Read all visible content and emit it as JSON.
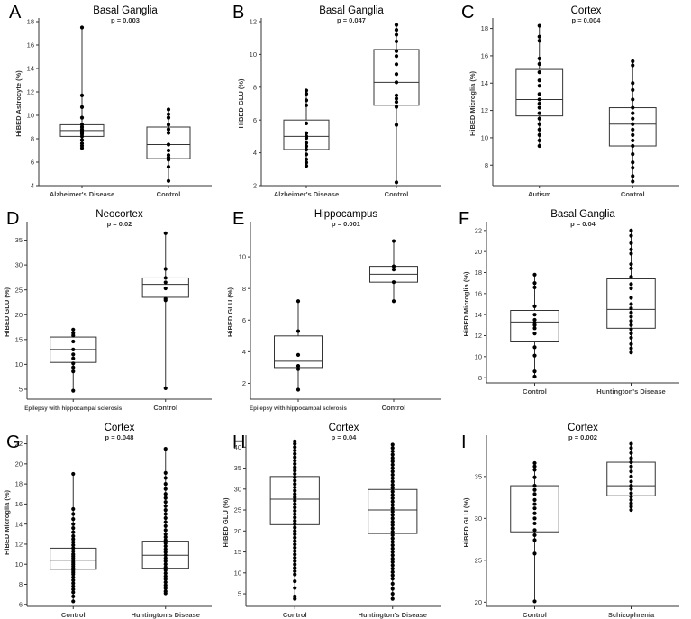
{
  "chart_data": [
    {
      "label": "A",
      "type": "boxplot",
      "title": "Basal Ganglia",
      "pvalue": "p = 0.003",
      "ylabel": "HiBED Astrocyte (%)",
      "ylim": [
        4,
        18
      ],
      "yticks": [
        4,
        6,
        8,
        10,
        12,
        14,
        16,
        18
      ],
      "categories": [
        "Alzheimer's Disease",
        "Control"
      ],
      "boxes": [
        {
          "q1": 8.2,
          "median": 8.7,
          "q3": 9.2,
          "min": 7.2,
          "max": 17.5,
          "points": [
            17.5,
            11.7,
            10.7,
            9.8,
            9.2,
            9.0,
            8.8,
            8.7,
            8.6,
            8.5,
            8.4,
            8.2,
            7.9,
            7.6,
            7.4,
            7.2
          ]
        },
        {
          "q1": 6.3,
          "median": 7.5,
          "q3": 9.0,
          "min": 4.4,
          "max": 10.5,
          "points": [
            10.5,
            10.1,
            9.8,
            9.2,
            8.8,
            8.5,
            7.5,
            7.0,
            6.6,
            6.4,
            6.2,
            5.6,
            4.4
          ]
        }
      ]
    },
    {
      "label": "B",
      "type": "boxplot",
      "title": "Basal Ganglia",
      "pvalue": "p = 0.047",
      "ylabel": "HiBED GLU (%)",
      "ylim": [
        2,
        12
      ],
      "yticks": [
        2,
        4,
        6,
        8,
        10,
        12
      ],
      "categories": [
        "Alzheimer's Disease",
        "Control"
      ],
      "boxes": [
        {
          "q1": 4.2,
          "median": 5.0,
          "q3": 6.0,
          "min": 3.2,
          "max": 7.8,
          "points": [
            7.8,
            7.6,
            7.2,
            6.9,
            5.8,
            5.2,
            5.0,
            4.9,
            4.6,
            4.4,
            4.2,
            3.9,
            3.6,
            3.4,
            3.2
          ]
        },
        {
          "q1": 6.9,
          "median": 8.3,
          "q3": 10.3,
          "min": 2.2,
          "max": 11.8,
          "points": [
            11.8,
            11.5,
            11.2,
            10.8,
            10.2,
            9.9,
            9.4,
            8.8,
            8.3,
            7.5,
            7.3,
            7.1,
            6.8,
            5.7,
            2.2
          ]
        }
      ]
    },
    {
      "label": "C",
      "type": "boxplot",
      "title": "Cortex",
      "pvalue": "p = 0.004",
      "ylabel": "HiBED Microglia (%)",
      "ylim": [
        6.5,
        18.5
      ],
      "yticks": [
        8,
        10,
        12,
        14,
        16,
        18
      ],
      "categories": [
        "Autism",
        "Control"
      ],
      "boxes": [
        {
          "q1": 11.6,
          "median": 12.8,
          "q3": 15.0,
          "min": 9.4,
          "max": 18.2,
          "points": [
            18.2,
            17.4,
            17.1,
            15.8,
            15.4,
            14.8,
            14.2,
            13.8,
            13.2,
            12.8,
            12.5,
            12.2,
            11.8,
            11.4,
            11.0,
            10.6,
            10.2,
            9.8,
            9.4
          ]
        },
        {
          "q1": 9.4,
          "median": 11.0,
          "q3": 12.2,
          "min": 6.8,
          "max": 15.6,
          "points": [
            15.6,
            15.3,
            14.0,
            13.5,
            12.8,
            12.2,
            11.8,
            11.4,
            11.0,
            10.6,
            10.2,
            9.8,
            9.4,
            8.8,
            8.2,
            7.8,
            7.2,
            6.8
          ]
        }
      ]
    },
    {
      "label": "D",
      "type": "boxplot",
      "title": "Neocortex",
      "pvalue": "p = 0.02",
      "ylabel": "HiBED GLU (%)",
      "ylim": [
        3,
        38
      ],
      "yticks": [
        5,
        10,
        15,
        20,
        25,
        30,
        35
      ],
      "categories": [
        "Epilepsy with hippocampal sclerosis",
        "Control"
      ],
      "boxes": [
        {
          "q1": 10.4,
          "median": 13.0,
          "q3": 15.5,
          "min": 4.7,
          "max": 17.0,
          "points": [
            17.0,
            16.3,
            15.8,
            14.6,
            13.0,
            12.0,
            11.2,
            10.2,
            9.4,
            8.6,
            4.7
          ]
        },
        {
          "q1": 23.5,
          "median": 26.1,
          "q3": 27.4,
          "min": 5.2,
          "max": 36.4,
          "points": [
            36.4,
            29.2,
            27.4,
            26.5,
            25.3,
            23.2,
            22.9,
            5.2
          ]
        }
      ]
    },
    {
      "label": "E",
      "type": "boxplot",
      "title": "Hippocampus",
      "pvalue": "p = 0.001",
      "ylabel": "HiBED GLU (%)",
      "ylim": [
        1,
        12
      ],
      "yticks": [
        2,
        4,
        6,
        8,
        10
      ],
      "categories": [
        "Epilepsy with hippocampal sclerosis",
        "Control"
      ],
      "boxes": [
        {
          "q1": 3.0,
          "median": 3.4,
          "q3": 5.0,
          "min": 1.6,
          "max": 7.2,
          "points": [
            7.2,
            5.3,
            3.8,
            3.1,
            2.9,
            1.6
          ]
        },
        {
          "q1": 8.4,
          "median": 8.9,
          "q3": 9.4,
          "min": 7.2,
          "max": 11.0,
          "points": [
            11.0,
            9.4,
            9.2,
            8.4,
            7.2
          ]
        }
      ]
    },
    {
      "label": "F",
      "type": "boxplot",
      "title": "Basal Ganglia",
      "pvalue": "p = 0.04",
      "ylabel": "HiBED Microglia (%)",
      "ylim": [
        7.5,
        22.5
      ],
      "yticks": [
        8,
        10,
        12,
        14,
        16,
        18,
        20,
        22
      ],
      "categories": [
        "Control",
        "Huntington's Disease"
      ],
      "boxes": [
        {
          "q1": 11.4,
          "median": 13.3,
          "q3": 14.4,
          "min": 8.1,
          "max": 17.8,
          "points": [
            17.8,
            17.0,
            16.6,
            14.8,
            14.0,
            13.5,
            13.2,
            13.0,
            12.7,
            12.2,
            10.9,
            10.1,
            8.6,
            8.1
          ]
        },
        {
          "q1": 12.7,
          "median": 14.5,
          "q3": 17.4,
          "min": 10.4,
          "max": 22.0,
          "points": [
            22.0,
            21.5,
            20.8,
            20.2,
            19.8,
            18.8,
            18.4,
            17.6,
            16.9,
            16.5,
            15.6,
            15.0,
            14.6,
            14.2,
            13.8,
            13.4,
            13.0,
            12.6,
            12.2,
            11.8,
            11.2,
            10.8,
            10.4
          ]
        }
      ]
    },
    {
      "label": "G",
      "type": "boxplot",
      "title": "Cortex",
      "pvalue": "p = 0.048",
      "ylabel": "HiBED Microglia (%)",
      "ylim": [
        5.8,
        22.5
      ],
      "yticks": [
        6,
        8,
        10,
        12,
        14,
        16,
        18,
        20,
        22
      ],
      "categories": [
        "Control",
        "Huntington's Disease"
      ],
      "boxes": [
        {
          "q1": 9.5,
          "median": 10.4,
          "q3": 11.6,
          "min": 6.3,
          "max": 19.0,
          "points": [
            19.0,
            15.5,
            15.0,
            14.5,
            14.0,
            13.6,
            13.2,
            12.8,
            12.5,
            12.2,
            11.9,
            11.6,
            11.3,
            11.0,
            10.8,
            10.6,
            10.4,
            10.2,
            10.0,
            9.8,
            9.6,
            9.4,
            9.2,
            9.0,
            8.7,
            8.4,
            8.1,
            7.8,
            7.5,
            7.2,
            6.8,
            6.3
          ]
        },
        {
          "q1": 9.6,
          "median": 10.9,
          "q3": 12.3,
          "min": 7.1,
          "max": 21.5,
          "points": [
            21.5,
            19.1,
            18.6,
            18.0,
            17.5,
            17.0,
            16.6,
            16.2,
            15.8,
            15.4,
            15.0,
            14.6,
            14.2,
            13.8,
            13.4,
            13.0,
            12.7,
            12.4,
            12.1,
            11.8,
            11.5,
            11.2,
            10.9,
            10.6,
            10.3,
            10.0,
            9.7,
            9.4,
            9.1,
            8.8,
            8.5,
            8.2,
            7.9,
            7.6,
            7.3,
            7.1
          ]
        }
      ]
    },
    {
      "label": "H",
      "type": "boxplot",
      "title": "Cortex",
      "pvalue": "p = 0.04",
      "ylabel": "HiBED GLU (%)",
      "ylim": [
        2,
        42
      ],
      "yticks": [
        5,
        10,
        15,
        20,
        25,
        30,
        35,
        40
      ],
      "categories": [
        "Control",
        "Huntington's Disease"
      ],
      "boxes": [
        {
          "q1": 21.5,
          "median": 27.6,
          "q3": 33.0,
          "min": 3.8,
          "max": 41.4,
          "points": [
            41.4,
            40.8,
            40.0,
            39.2,
            38.4,
            37.6,
            36.8,
            36.0,
            35.2,
            34.4,
            33.6,
            32.8,
            32.0,
            31.2,
            30.4,
            29.6,
            28.8,
            28.0,
            27.2,
            26.4,
            25.6,
            24.8,
            24.0,
            23.2,
            22.4,
            21.6,
            20.8,
            20.0,
            19.2,
            18.4,
            17.6,
            16.8,
            16.0,
            15.2,
            14.4,
            13.6,
            12.8,
            12.0,
            11.2,
            10.4,
            9.6,
            8.0,
            6.4,
            4.4,
            3.8
          ]
        },
        {
          "q1": 19.4,
          "median": 25.0,
          "q3": 29.9,
          "min": 3.8,
          "max": 40.6,
          "points": [
            40.6,
            39.8,
            39.0,
            38.2,
            37.4,
            36.6,
            35.8,
            35.0,
            34.2,
            33.4,
            32.6,
            31.8,
            31.0,
            30.2,
            29.4,
            28.6,
            27.8,
            27.0,
            26.2,
            25.4,
            24.6,
            23.8,
            23.0,
            22.2,
            21.4,
            20.6,
            19.8,
            19.0,
            18.2,
            17.4,
            16.6,
            15.8,
            15.0,
            14.2,
            13.4,
            12.6,
            11.8,
            11.0,
            10.2,
            9.4,
            8.6,
            7.4,
            6.2,
            5.0,
            3.8
          ]
        }
      ]
    },
    {
      "label": "I",
      "type": "boxplot",
      "title": "Cortex",
      "pvalue": "p = 0.002",
      "ylabel": "HiBED GLU (%)",
      "ylim": [
        19.5,
        39.5
      ],
      "yticks": [
        20,
        25,
        30,
        35
      ],
      "categories": [
        "Control",
        "Schizophrenia"
      ],
      "boxes": [
        {
          "q1": 28.4,
          "median": 31.6,
          "q3": 33.9,
          "min": 20.1,
          "max": 36.6,
          "points": [
            36.6,
            36.2,
            35.8,
            34.9,
            33.9,
            33.4,
            32.9,
            32.2,
            31.7,
            31.2,
            30.6,
            30.0,
            29.4,
            28.6,
            28.0,
            27.4,
            25.8,
            20.1
          ]
        },
        {
          "q1": 32.7,
          "median": 33.9,
          "q3": 36.7,
          "min": 31.0,
          "max": 38.9,
          "points": [
            38.9,
            38.4,
            37.8,
            37.2,
            36.7,
            36.2,
            35.6,
            35.0,
            34.4,
            33.9,
            33.5,
            33.0,
            32.6,
            32.2,
            31.8,
            31.4,
            31.0
          ]
        }
      ]
    }
  ]
}
